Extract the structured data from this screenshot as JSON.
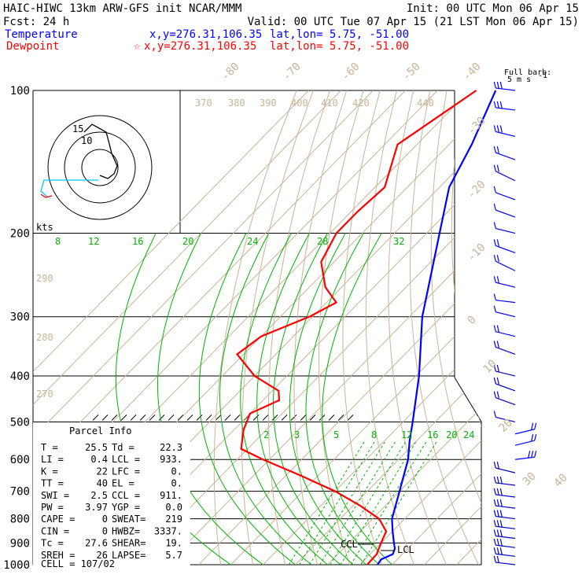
{
  "header": {
    "line1_left": "HAIC-HIWC 13km ARW-GFS init   NCAR/MMM",
    "line1_right": "Init: 00 UTC Mon 06 Apr 15",
    "line2_left": "Fcst:   24 h",
    "line2_right": "Valid: 00 UTC Tue 07 Apr 15 (21 LST Mon 06 Apr 15)",
    "temp_label": "Temperature",
    "temp_xy": "x,y=276.31,106.35",
    "temp_latlon": "lat,lon=  5.75, -51.00",
    "dew_label": "Dewpoint",
    "dew_marker": "☆",
    "dew_xy": "x,y=276.31,106.35",
    "dew_latlon": "lat,lon=  5.75, -51.00",
    "colors": {
      "temperature": "#0000ff",
      "dewpoint": "#ff0000",
      "isotherm": "#c8b496",
      "mixing_ratio": "#00b400",
      "hodo_cyan": "#00c8ff"
    }
  },
  "barb_legend": {
    "title": "Full barb:",
    "value": "5 m s",
    "exp": "-1"
  },
  "hodograph": {
    "units": "kts",
    "ring_labels": [
      "15",
      "10"
    ]
  },
  "parcel_info": {
    "title": "Parcel Info",
    "rows": [
      [
        "T  =",
        "25.5",
        "Td =",
        "22.3"
      ],
      [
        "LI =",
        "0.4",
        "LCL =",
        "933."
      ],
      [
        "K  =",
        "22",
        "LFC =",
        "0."
      ],
      [
        "TT =",
        "40",
        "EL  =",
        "0."
      ],
      [
        "SWI =",
        "2.5",
        "CCL =",
        "911."
      ],
      [
        "PW =",
        "3.97",
        "YGP =",
        "0.0"
      ],
      [
        "CAPE =",
        "0",
        "SWEAT=",
        "219"
      ],
      [
        "CIN =",
        "0",
        "HWBZ=",
        "3337."
      ],
      [
        "Tc =",
        "27.6",
        "SHEAR=",
        "19."
      ],
      [
        "SREH =",
        "26",
        "LAPSE=",
        "5.7"
      ]
    ],
    "cell": "CELL = 107/02"
  },
  "chart_data": {
    "type": "skew-t log-p",
    "pressure_levels": [
      100,
      200,
      300,
      400,
      500,
      600,
      700,
      800,
      900,
      1000
    ],
    "isotherm_labels": [
      -80,
      -70,
      -60,
      -50,
      -40,
      -30,
      -20,
      -10,
      0,
      10,
      20,
      30,
      40
    ],
    "theta_labels": [
      270,
      280,
      290,
      370,
      380,
      390,
      400,
      410,
      420,
      440
    ],
    "theta_label_axis": [
      270,
      280,
      290
    ],
    "mixing_ratio_top_labels": [
      8,
      12,
      16,
      20,
      24,
      28,
      32
    ],
    "mixing_ratio_mid_labels": [
      2,
      3,
      5,
      8,
      12,
      16,
      20,
      24
    ],
    "level_markers": [
      "CCL",
      "LCL"
    ],
    "series": [
      {
        "name": "Temperature",
        "color": "#0000ff",
        "points": [
          [
            100,
            -82
          ],
          [
            130,
            -73
          ],
          [
            160,
            -67
          ],
          [
            200,
            -56
          ],
          [
            250,
            -45
          ],
          [
            300,
            -36
          ],
          [
            400,
            -19
          ],
          [
            500,
            -7
          ],
          [
            550,
            -2
          ],
          [
            600,
            3
          ],
          [
            700,
            10
          ],
          [
            800,
            16
          ],
          [
            850,
            20
          ],
          [
            900,
            24
          ],
          [
            925,
            26
          ],
          [
            950,
            27
          ],
          [
            975,
            25
          ],
          [
            1000,
            25.5
          ]
        ]
      },
      {
        "name": "Dewpoint",
        "color": "#ff0000",
        "points": [
          [
            100,
            -88
          ],
          [
            130,
            -96
          ],
          [
            160,
            -87
          ],
          [
            180,
            -88
          ],
          [
            200,
            -88
          ],
          [
            230,
            -84
          ],
          [
            260,
            -75
          ],
          [
            280,
            -67
          ],
          [
            300,
            -71
          ],
          [
            330,
            -80
          ],
          [
            360,
            -82
          ],
          [
            400,
            -70
          ],
          [
            430,
            -58
          ],
          [
            450,
            -55
          ],
          [
            480,
            -60
          ],
          [
            520,
            -57
          ],
          [
            570,
            -52
          ],
          [
            600,
            -42
          ],
          [
            650,
            -25
          ],
          [
            700,
            -10
          ],
          [
            750,
            2
          ],
          [
            800,
            12
          ],
          [
            850,
            18
          ],
          [
            900,
            20
          ],
          [
            950,
            22
          ],
          [
            1000,
            22.3
          ]
        ]
      }
    ],
    "wind_barbs": [
      {
        "p": 100,
        "u": -5,
        "v": 1
      },
      {
        "p": 110,
        "u": -6,
        "v": 1
      },
      {
        "p": 125,
        "u": -6,
        "v": 2
      },
      {
        "p": 140,
        "u": -4,
        "v": 3
      },
      {
        "p": 155,
        "u": -3,
        "v": 4
      },
      {
        "p": 170,
        "u": -2,
        "v": 3
      },
      {
        "p": 185,
        "u": -1,
        "v": 3
      },
      {
        "p": 200,
        "u": -2,
        "v": 2
      },
      {
        "p": 220,
        "u": -3,
        "v": 3
      },
      {
        "p": 240,
        "u": -4,
        "v": 4
      },
      {
        "p": 260,
        "u": -3,
        "v": 2
      },
      {
        "p": 280,
        "u": -2,
        "v": 1
      },
      {
        "p": 300,
        "u": -2,
        "v": 2
      },
      {
        "p": 330,
        "u": -3,
        "v": 2
      },
      {
        "p": 360,
        "u": -3,
        "v": 3
      },
      {
        "p": 400,
        "u": -3,
        "v": 2
      },
      {
        "p": 430,
        "u": -3,
        "v": 3
      },
      {
        "p": 460,
        "u": -3,
        "v": 3
      },
      {
        "p": 500,
        "u": -2,
        "v": 2
      },
      {
        "p": 530,
        "u": 3,
        "v": 2
      },
      {
        "p": 560,
        "u": 4,
        "v": 2
      },
      {
        "p": 600,
        "u": 5,
        "v": 1
      },
      {
        "p": 640,
        "u": -4,
        "v": 2
      },
      {
        "p": 680,
        "u": -5,
        "v": 1
      },
      {
        "p": 720,
        "u": -5,
        "v": 1
      },
      {
        "p": 760,
        "u": -6,
        "v": 1
      },
      {
        "p": 800,
        "u": -7,
        "v": 1
      },
      {
        "p": 840,
        "u": -7,
        "v": 1
      },
      {
        "p": 880,
        "u": -6,
        "v": 1
      },
      {
        "p": 920,
        "u": -5,
        "v": 1
      },
      {
        "p": 960,
        "u": -5,
        "v": 1
      },
      {
        "p": 1000,
        "u": -4,
        "v": 1
      }
    ],
    "hodograph_trace": [
      [
        0,
        -10
      ],
      [
        10,
        -14
      ],
      [
        18,
        -8
      ],
      [
        22,
        2
      ],
      [
        15,
        18
      ],
      [
        12,
        30
      ],
      [
        8,
        45
      ],
      [
        -10,
        55
      ],
      [
        -20,
        45
      ]
    ]
  }
}
